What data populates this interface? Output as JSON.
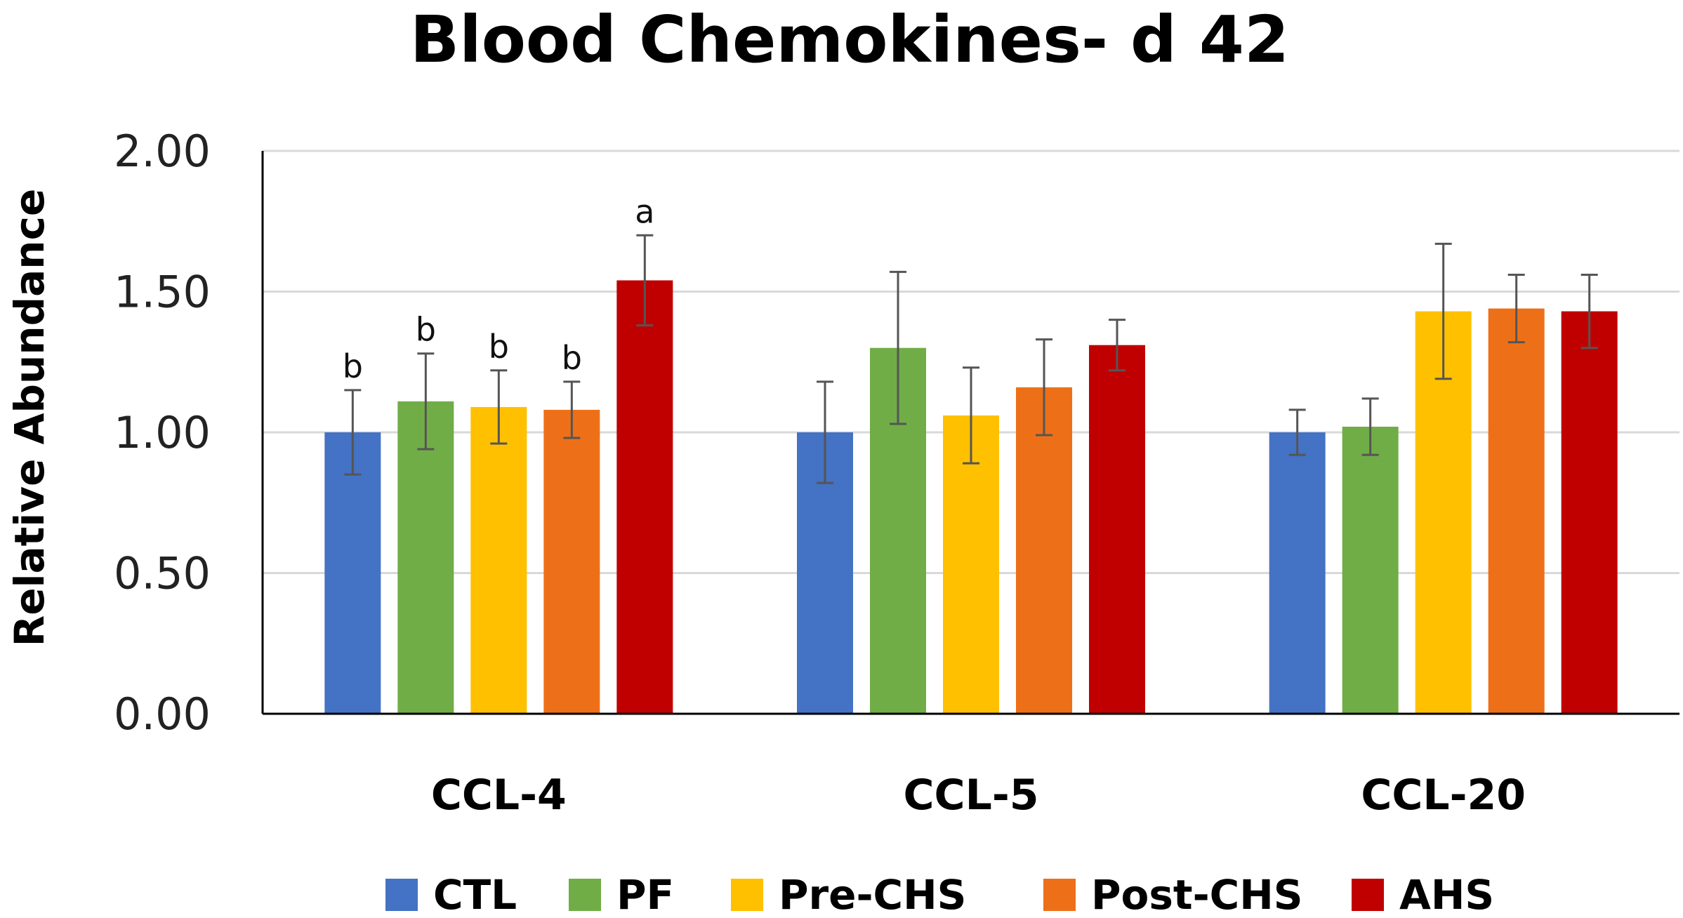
{
  "chart_data": {
    "type": "bar",
    "title": "Blood Chemokines- d 42",
    "xlabel": "",
    "ylabel": "Relative Abundance",
    "ylim": [
      0,
      2.0
    ],
    "yticks": [
      "0.00",
      "0.50",
      "1.00",
      "1.50",
      "2.00"
    ],
    "ytick_values": [
      0,
      0.5,
      1.0,
      1.5,
      2.0
    ],
    "grid": true,
    "legend_position": "bottom",
    "categories": [
      "CCL-4",
      "CCL-5",
      "CCL-20"
    ],
    "series": [
      {
        "name": "CTL",
        "color": "#4472C4",
        "values": [
          1.0,
          1.0,
          1.0
        ],
        "errors": [
          0.15,
          0.18,
          0.08
        ],
        "sig_labels": [
          "b",
          "",
          ""
        ]
      },
      {
        "name": "PF",
        "color": "#70AD47",
        "values": [
          1.11,
          1.3,
          1.02
        ],
        "errors": [
          0.17,
          0.27,
          0.1
        ],
        "sig_labels": [
          "b",
          "",
          ""
        ]
      },
      {
        "name": "Pre-CHS",
        "color": "#FFC000",
        "values": [
          1.09,
          1.06,
          1.43
        ],
        "errors": [
          0.13,
          0.17,
          0.24
        ],
        "sig_labels": [
          "b",
          "",
          ""
        ]
      },
      {
        "name": "Post-CHS",
        "color": "#ED7019",
        "values": [
          1.08,
          1.16,
          1.44
        ],
        "errors": [
          0.1,
          0.17,
          0.12
        ],
        "sig_labels": [
          "b",
          "",
          ""
        ]
      },
      {
        "name": "AHS",
        "color": "#C00000",
        "values": [
          1.54,
          1.31,
          1.43
        ],
        "errors": [
          0.16,
          0.09,
          0.13
        ],
        "sig_labels": [
          "a",
          "",
          ""
        ]
      }
    ]
  }
}
